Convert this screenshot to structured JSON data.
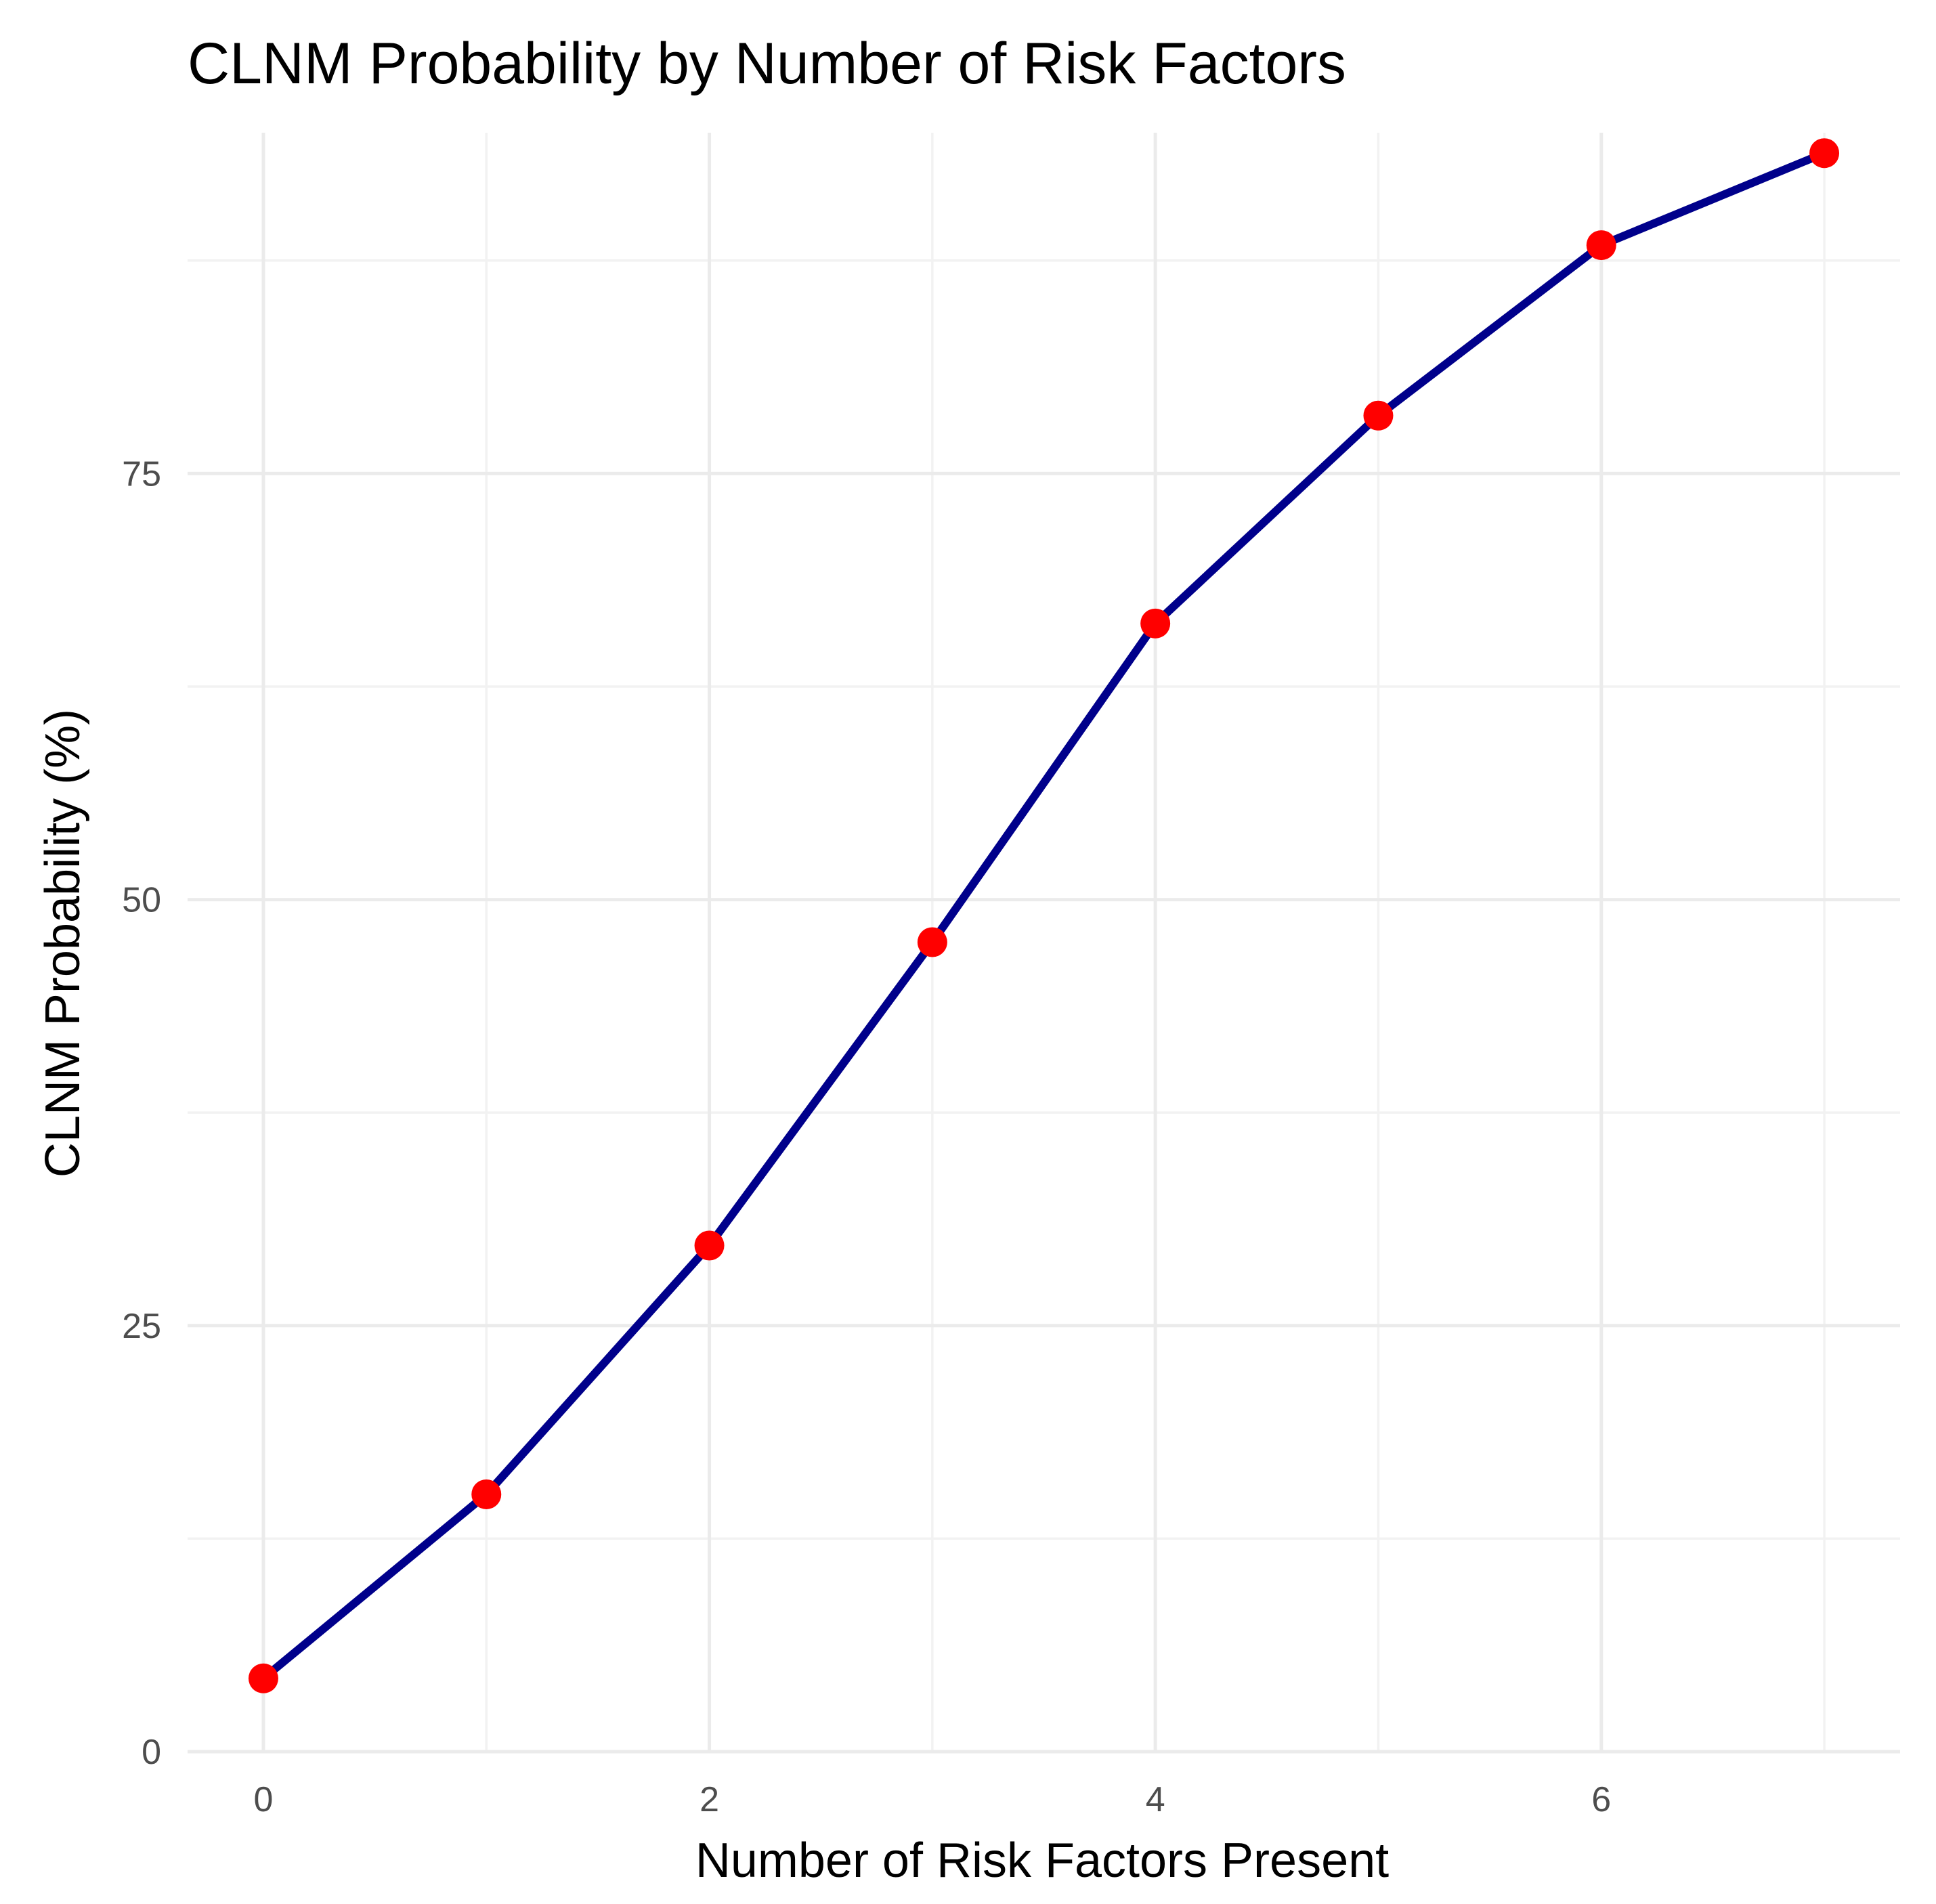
{
  "chart_data": {
    "type": "line",
    "title": "CLNM Probability by Number of Risk Factors",
    "xlabel": "Number of Risk Factors Present",
    "ylabel": "CLNM Probability (%)",
    "xlim": [
      -0.34,
      7.34
    ],
    "ylim": [
      0,
      95
    ],
    "x_ticks": [
      0,
      2,
      4,
      6
    ],
    "x_tick_labels": [
      "0",
      "2",
      "4",
      "6"
    ],
    "y_ticks": [
      0,
      25,
      50,
      75
    ],
    "y_tick_labels": [
      "0",
      "25",
      "50",
      "75"
    ],
    "x_minor": [
      1,
      3,
      5,
      7
    ],
    "y_minor": [
      12.5,
      37.5,
      62.5,
      87.5
    ],
    "grid": true,
    "series": [
      {
        "name": "CLNM Probability",
        "x": [
          0,
          1,
          2,
          3,
          4,
          5,
          6,
          7
        ],
        "values": [
          4.3,
          15.1,
          29.7,
          47.5,
          66.2,
          78.4,
          88.4,
          93.8
        ],
        "line_color": "#00008b",
        "point_color": "#ff0000"
      }
    ]
  }
}
